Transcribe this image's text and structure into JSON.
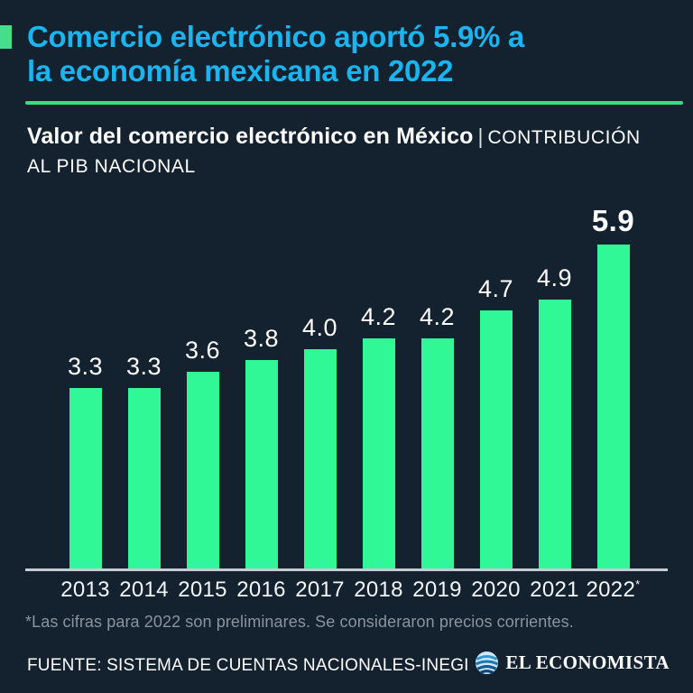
{
  "page": {
    "background": "#14212F"
  },
  "header": {
    "accent_color": "#45DE8C",
    "title_color": "#1BB4EF",
    "title_line1": "Comercio electrónico aportó 5.9% a",
    "title_line2": "la economía mexicana en 2022"
  },
  "subtitle": {
    "main": "Valor del comercio electrónico en México",
    "separator": "|",
    "qualifier_line1": "CONTRIBUCIÓN",
    "qualifier_line2": "AL PIB NACIONAL"
  },
  "chart_data": {
    "type": "bar",
    "title": "Valor del comercio electrónico en México | CONTRIBUCIÓN AL PIB NACIONAL",
    "categories": [
      "2013",
      "2014",
      "2015",
      "2016",
      "2017",
      "2018",
      "2019",
      "2020",
      "2021",
      "2022"
    ],
    "values": [
      3.3,
      3.3,
      3.6,
      3.8,
      4.0,
      4.2,
      4.2,
      4.7,
      4.9,
      5.9
    ],
    "value_labels": [
      "3.3",
      "3.3",
      "3.6",
      "3.8",
      "4.0",
      "4.2",
      "4.2",
      "4.7",
      "4.9",
      "5.9"
    ],
    "last_category_marker": "*",
    "emphasized_index": 9,
    "bar_color": "#30F896",
    "xlabel": "",
    "ylabel": "",
    "ylim": [
      0,
      6.2
    ],
    "grid": false,
    "legend": false,
    "axis_line_color": "#C6CCD3",
    "value_label_color": "#FFFFFF"
  },
  "footnote": {
    "text": "*Las cifras para 2022 son preliminares. Se consideraron precios corrientes."
  },
  "footer": {
    "source": "FUENTE: SISTEMA DE CUENTAS NACIONALES-INEGI",
    "logo_text": "EL ECONOMISTA"
  }
}
